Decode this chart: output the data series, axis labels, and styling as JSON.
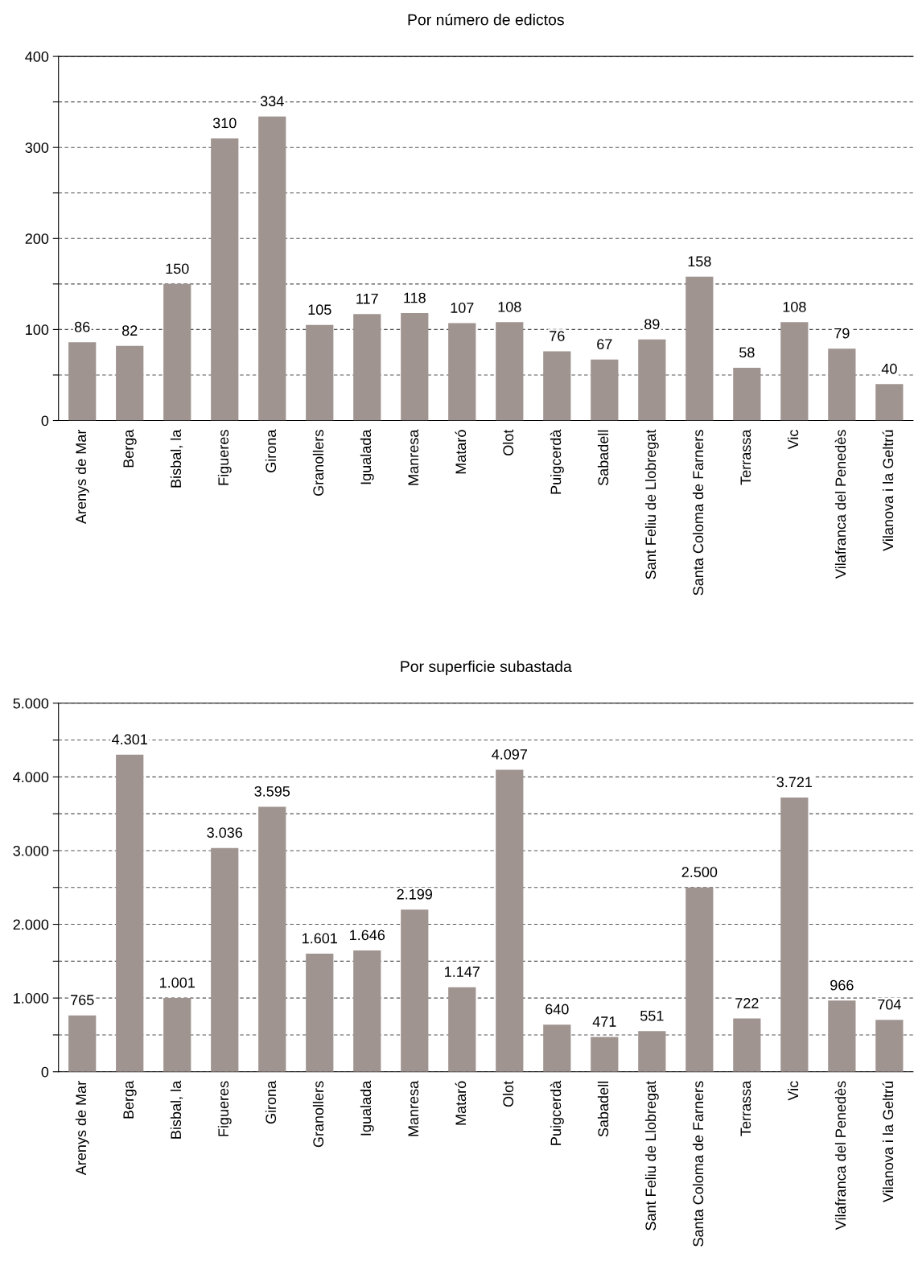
{
  "chart_data": [
    {
      "type": "bar",
      "title": "Por número de edictos",
      "categories": [
        "Arenys de Mar",
        "Berga",
        "Bisbal, la",
        "Figueres",
        "Girona",
        "Granollers",
        "Igualada",
        "Manresa",
        "Mataró",
        "Olot",
        "Puigcerdà",
        "Sabadell",
        "Sant Feliu de Llobregat",
        "Santa Coloma de Farners",
        "Terrassa",
        "Vic",
        "Vilafranca del Penedès",
        "Vilanova i la Geltrú"
      ],
      "values": [
        86,
        82,
        150,
        310,
        334,
        105,
        117,
        118,
        107,
        108,
        76,
        67,
        89,
        158,
        58,
        108,
        79,
        40
      ],
      "color": "#a09490",
      "ylim": [
        0,
        400
      ],
      "yticks": [
        0,
        {
          "value": 50,
          "label": null
        },
        100,
        {
          "value": 150,
          "label": null
        },
        200,
        {
          "value": 250,
          "label": null
        },
        300,
        {
          "value": 350,
          "label": null
        },
        400
      ],
      "grid": "y",
      "data_labels": true
    },
    {
      "type": "bar",
      "title": "Por superficie subastada",
      "categories": [
        "Arenys de Mar",
        "Berga",
        "Bisbal, la",
        "Figueres",
        "Girona",
        "Granollers",
        "Igualada",
        "Manresa",
        "Mataró",
        "Olot",
        "Puigcerdà",
        "Sabadell",
        "Sant Feliu de Llobregat",
        "Santa Coloma de Farners",
        "Terrassa",
        "Vic",
        "Vilafranca del Penedès",
        "Vilanova i la Geltrú"
      ],
      "values": [
        765,
        4301,
        1001,
        3036,
        3595,
        1601,
        1646,
        2199,
        1147,
        4097,
        640,
        471,
        551,
        2500,
        722,
        3721,
        966,
        704
      ],
      "value_labels": [
        "765",
        "4.301",
        "1.001",
        "3.036",
        "3.595",
        "1.601",
        "1.646",
        "2.199",
        "1.147",
        "4.097",
        "640",
        "471",
        "551",
        "2.500",
        "722",
        "3.721",
        "966",
        "704"
      ],
      "color": "#a09490",
      "ylim": [
        0,
        5000
      ],
      "yticks": [
        0,
        {
          "value": 500,
          "label": null
        },
        {
          "value": 1000,
          "label": "1.000"
        },
        {
          "value": 1500,
          "label": null
        },
        {
          "value": 2000,
          "label": "2.000"
        },
        {
          "value": 2500,
          "label": null
        },
        {
          "value": 3000,
          "label": "3.000"
        },
        {
          "value": 3500,
          "label": null
        },
        {
          "value": 4000,
          "label": "4.000"
        },
        {
          "value": 4500,
          "label": null
        },
        {
          "value": 5000,
          "label": "5.000"
        }
      ],
      "grid": "y"
    }
  ]
}
